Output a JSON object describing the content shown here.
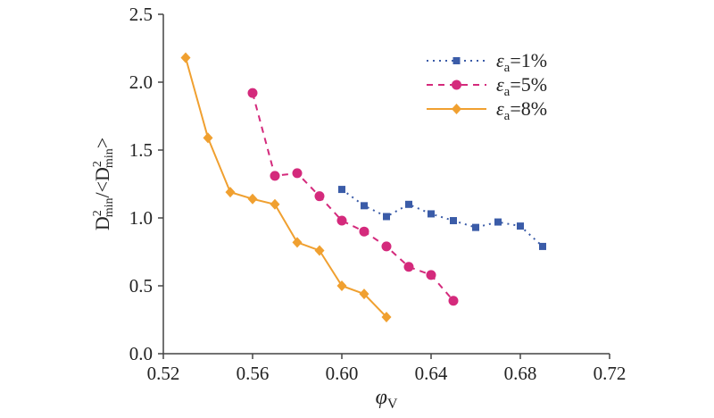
{
  "chart_data": {
    "type": "line",
    "xlabel": "φ",
    "xlabel_sub": "V",
    "ylabel": "D²min/<D²min>",
    "xlim": [
      0.52,
      0.72
    ],
    "ylim": [
      0.0,
      2.5
    ],
    "x_ticks": [
      "0.52",
      "0.56",
      "0.60",
      "0.64",
      "0.68",
      "0.72"
    ],
    "y_ticks": [
      "0.0",
      "0.5",
      "1.0",
      "1.5",
      "2.0",
      "2.5"
    ],
    "grid": false,
    "legend_position": "top-right",
    "series": [
      {
        "name": "εa=1%",
        "label_symbol": "ε",
        "label_sub": "a",
        "label_value": "=1%",
        "color": "#3b5ca8",
        "marker": "square",
        "line_style": "dotted",
        "x": [
          0.6,
          0.61,
          0.62,
          0.63,
          0.64,
          0.65,
          0.66,
          0.67,
          0.68,
          0.69
        ],
        "y": [
          1.21,
          1.09,
          1.01,
          1.1,
          1.03,
          0.98,
          0.93,
          0.97,
          0.94,
          0.79
        ]
      },
      {
        "name": "εa=5%",
        "label_symbol": "ε",
        "label_sub": "a",
        "label_value": "=5%",
        "color": "#d42a7c",
        "marker": "circle",
        "line_style": "dashed",
        "x": [
          0.56,
          0.57,
          0.58,
          0.59,
          0.6,
          0.61,
          0.62,
          0.63,
          0.64,
          0.65
        ],
        "y": [
          1.92,
          1.31,
          1.33,
          1.16,
          0.98,
          0.9,
          0.79,
          0.64,
          0.58,
          0.39
        ]
      },
      {
        "name": "εa=8%",
        "label_symbol": "ε",
        "label_sub": "a",
        "label_value": "=8%",
        "color": "#f0a030",
        "marker": "diamond",
        "line_style": "solid",
        "x": [
          0.53,
          0.54,
          0.55,
          0.56,
          0.57,
          0.58,
          0.59,
          0.6,
          0.61,
          0.62
        ],
        "y": [
          2.18,
          1.59,
          1.19,
          1.14,
          1.1,
          0.82,
          0.76,
          0.5,
          0.44,
          0.27
        ]
      }
    ]
  }
}
